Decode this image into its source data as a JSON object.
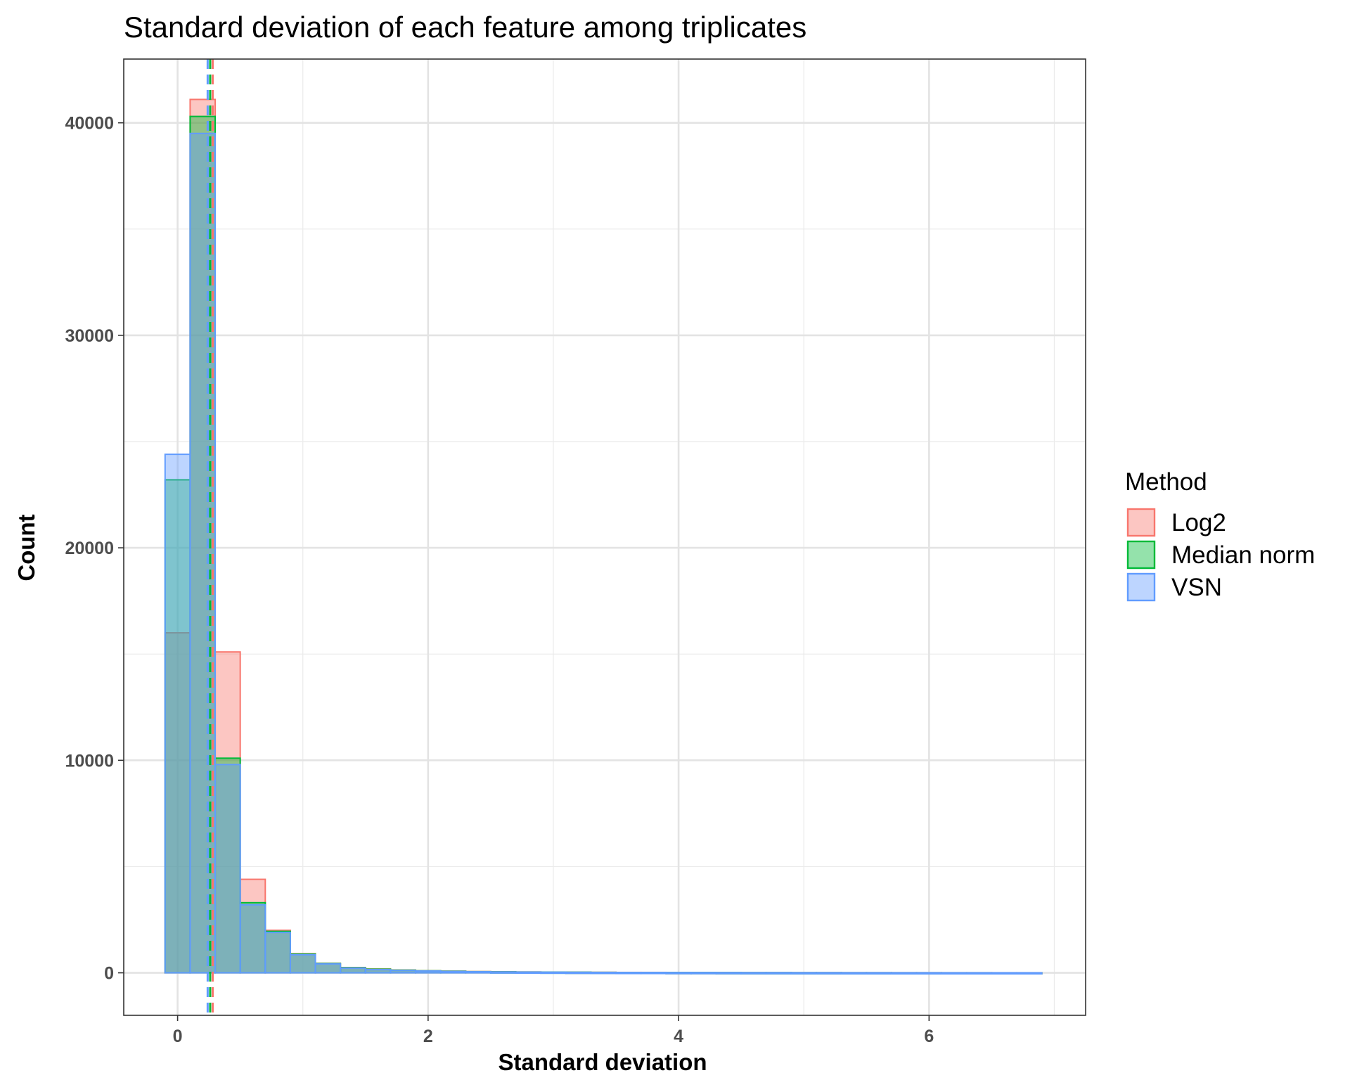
{
  "chart_data": {
    "type": "histogram",
    "title": "Standard deviation of each feature among triplicates",
    "xlabel": "Standard deviation",
    "ylabel": "Count",
    "xlim": [
      -0.43,
      7.25
    ],
    "ylim": [
      -2000,
      43000
    ],
    "x_ticks": [
      0,
      2,
      4,
      6
    ],
    "y_ticks": [
      0,
      10000,
      20000,
      30000,
      40000
    ],
    "grid": true,
    "bin_edges": [
      -0.1,
      0.1,
      0.3,
      0.5,
      0.7,
      0.9,
      1.1,
      1.3,
      1.5,
      1.7,
      1.9,
      2.1,
      2.3,
      2.5,
      2.7,
      2.9,
      3.1,
      3.3,
      3.5,
      3.7,
      3.9,
      4.1,
      4.3,
      4.5,
      4.7,
      4.9,
      5.1,
      5.3,
      5.5,
      5.7,
      5.9,
      6.1,
      6.3,
      6.5,
      6.7,
      6.9
    ],
    "series": [
      {
        "name": "Log2",
        "fill": "#f8766d",
        "stroke": "#f8766d",
        "values": [
          16000,
          41100,
          15100,
          4400,
          2000,
          900,
          450,
          250,
          180,
          130,
          100,
          80,
          60,
          50,
          40,
          35,
          30,
          25,
          20,
          20,
          15,
          15,
          12,
          10,
          10,
          8,
          8,
          6,
          6,
          5,
          5,
          4,
          4,
          3,
          3
        ],
        "mean_line": 0.28
      },
      {
        "name": "Median norm",
        "fill": "#00ba38",
        "stroke": "#00ba38",
        "values": [
          23200,
          40300,
          10100,
          3300,
          1950,
          880,
          440,
          240,
          170,
          125,
          95,
          75,
          55,
          45,
          38,
          32,
          28,
          22,
          18,
          18,
          14,
          14,
          11,
          9,
          9,
          7,
          7,
          5,
          5,
          4,
          4,
          3,
          3,
          2,
          2
        ],
        "mean_line": 0.26
      },
      {
        "name": "VSN",
        "fill": "#619cff",
        "stroke": "#619cff",
        "values": [
          24400,
          39500,
          9800,
          3200,
          1900,
          850,
          420,
          220,
          150,
          110,
          85,
          65,
          50,
          40,
          34,
          30,
          25,
          20,
          16,
          16,
          12,
          12,
          10,
          8,
          8,
          6,
          6,
          4,
          4,
          3,
          3,
          2,
          2,
          2,
          2
        ],
        "mean_line": 0.24
      }
    ],
    "legend": {
      "title": "Method",
      "position": "right",
      "items": [
        "Log2",
        "Median norm",
        "VSN"
      ]
    }
  }
}
